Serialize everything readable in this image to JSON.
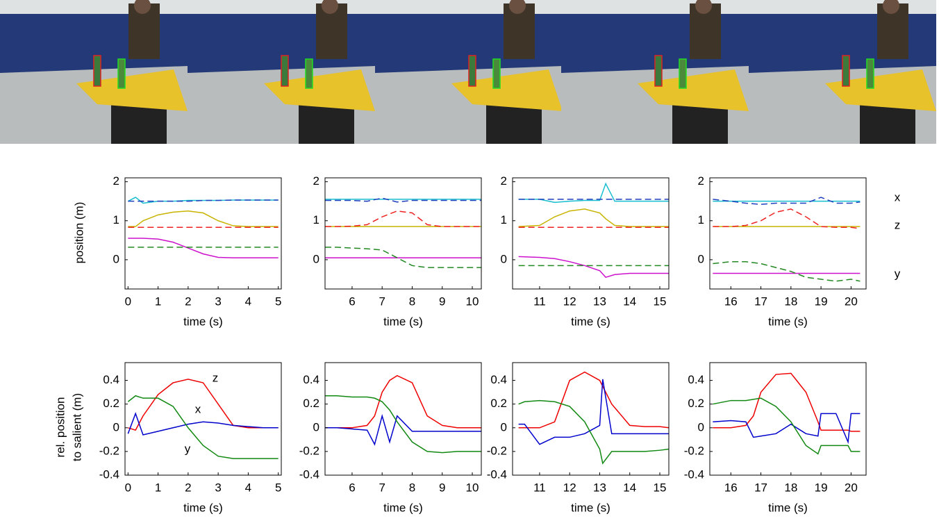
{
  "chart_data": [
    {
      "type": "line",
      "xlabel": "time (s)",
      "ylabel": [
        "position (m)"
      ],
      "x": [
        0,
        0.25,
        0.5,
        1,
        1.5,
        2,
        2.5,
        3,
        3.5,
        4,
        4.5,
        5
      ],
      "series": [
        {
          "color": "#17becf",
          "dashed": false,
          "values": [
            1.5,
            1.6,
            1.45,
            1.5,
            1.5,
            1.52,
            1.52,
            1.52,
            1.53,
            1.53,
            1.53,
            1.53
          ]
        },
        {
          "color": "#1f3fbf",
          "dashed": true,
          "values": [
            1.5,
            1.5,
            1.5,
            1.5,
            1.5,
            1.5,
            1.52,
            1.52,
            1.53,
            1.53,
            1.53,
            1.53
          ]
        },
        {
          "color": "#c8b400",
          "dashed": false,
          "values": [
            0.85,
            0.85,
            1.0,
            1.15,
            1.22,
            1.25,
            1.2,
            1.0,
            0.87,
            0.85,
            0.85,
            0.85
          ]
        },
        {
          "color": "#ee2222",
          "dashed": true,
          "values": [
            0.83,
            0.83,
            0.83,
            0.83,
            0.83,
            0.83,
            0.83,
            0.83,
            0.83,
            0.83,
            0.83,
            0.83
          ]
        },
        {
          "color": "#cc11cc",
          "dashed": false,
          "values": [
            0.55,
            0.55,
            0.55,
            0.53,
            0.45,
            0.3,
            0.15,
            0.06,
            0.05,
            0.05,
            0.05,
            0.05
          ]
        },
        {
          "color": "#228822",
          "dashed": true,
          "values": [
            0.32,
            0.32,
            0.32,
            0.32,
            0.32,
            0.32,
            0.32,
            0.32,
            0.32,
            0.32,
            0.32,
            0.32
          ]
        }
      ],
      "xlim": [
        -0.1,
        5.1
      ],
      "xticks": [
        0,
        1,
        2,
        3,
        4,
        5
      ],
      "ylim": [
        -0.75,
        2.1
      ],
      "yticks": [
        0,
        1,
        2
      ]
    },
    {
      "type": "line",
      "xlabel": "time (s)",
      "x": [
        5.1,
        5.5,
        6,
        6.5,
        7,
        7.5,
        8,
        8.5,
        9,
        9.5,
        10,
        10.3
      ],
      "series": [
        {
          "color": "#17becf",
          "dashed": false,
          "values": [
            1.55,
            1.55,
            1.55,
            1.55,
            1.55,
            1.55,
            1.55,
            1.55,
            1.55,
            1.55,
            1.55,
            1.55
          ]
        },
        {
          "color": "#1f3fbf",
          "dashed": true,
          "values": [
            1.52,
            1.52,
            1.52,
            1.5,
            1.58,
            1.48,
            1.52,
            1.52,
            1.52,
            1.52,
            1.52,
            1.52
          ]
        },
        {
          "color": "#c8b400",
          "dashed": false,
          "values": [
            0.85,
            0.85,
            0.85,
            0.85,
            0.85,
            0.85,
            0.85,
            0.85,
            0.85,
            0.85,
            0.85,
            0.85
          ]
        },
        {
          "color": "#ee2222",
          "dashed": true,
          "values": [
            0.85,
            0.85,
            0.86,
            0.9,
            1.1,
            1.25,
            1.2,
            0.9,
            0.85,
            0.85,
            0.85,
            0.85
          ]
        },
        {
          "color": "#cc11cc",
          "dashed": false,
          "values": [
            0.05,
            0.05,
            0.05,
            0.05,
            0.05,
            0.05,
            0.05,
            0.05,
            0.05,
            0.05,
            0.05,
            0.05
          ]
        },
        {
          "color": "#228822",
          "dashed": true,
          "values": [
            0.32,
            0.32,
            0.3,
            0.28,
            0.25,
            0.05,
            -0.15,
            -0.2,
            -0.2,
            -0.2,
            -0.2,
            -0.2
          ]
        }
      ],
      "xlim": [
        5.1,
        10.3
      ],
      "xticks": [
        6,
        7,
        8,
        9,
        10
      ],
      "ylim": [
        -0.75,
        2.1
      ],
      "yticks": [
        0,
        1,
        2
      ]
    },
    {
      "type": "line",
      "xlabel": "time (s)",
      "x": [
        10.3,
        11,
        11.5,
        12,
        12.5,
        13,
        13.2,
        13.5,
        14,
        14.5,
        15,
        15.3
      ],
      "series": [
        {
          "color": "#17becf",
          "dashed": false,
          "values": [
            1.55,
            1.55,
            1.47,
            1.5,
            1.52,
            1.52,
            1.95,
            1.5,
            1.5,
            1.5,
            1.5,
            1.5
          ]
        },
        {
          "color": "#1f3fbf",
          "dashed": true,
          "values": [
            1.55,
            1.55,
            1.55,
            1.55,
            1.55,
            1.55,
            1.55,
            1.55,
            1.55,
            1.55,
            1.55,
            1.55
          ]
        },
        {
          "color": "#c8b400",
          "dashed": false,
          "values": [
            0.85,
            0.88,
            1.1,
            1.25,
            1.3,
            1.2,
            1.05,
            0.88,
            0.85,
            0.85,
            0.85,
            0.85
          ]
        },
        {
          "color": "#ee2222",
          "dashed": true,
          "values": [
            0.83,
            0.83,
            0.83,
            0.83,
            0.83,
            0.83,
            0.83,
            0.83,
            0.83,
            0.83,
            0.83,
            0.83
          ]
        },
        {
          "color": "#cc11cc",
          "dashed": false,
          "values": [
            0.08,
            0.06,
            0.03,
            -0.05,
            -0.15,
            -0.28,
            -0.45,
            -0.38,
            -0.35,
            -0.35,
            -0.35,
            -0.35
          ]
        },
        {
          "color": "#228822",
          "dashed": true,
          "values": [
            -0.15,
            -0.15,
            -0.15,
            -0.15,
            -0.15,
            -0.15,
            -0.15,
            -0.15,
            -0.15,
            -0.15,
            -0.15,
            -0.15
          ]
        }
      ],
      "xlim": [
        10.1,
        15.3
      ],
      "xticks": [
        11,
        12,
        13,
        14,
        15
      ],
      "ylim": [
        -0.75,
        2.1
      ],
      "yticks": [
        0,
        1,
        2
      ]
    },
    {
      "type": "line",
      "xlabel": "time (s)",
      "annotations": [
        "x",
        "z",
        "y"
      ],
      "x": [
        15.4,
        16,
        16.5,
        17,
        17.5,
        18,
        18.5,
        19,
        19.5,
        20,
        20.3
      ],
      "series": [
        {
          "color": "#17becf",
          "dashed": false,
          "values": [
            1.5,
            1.5,
            1.5,
            1.5,
            1.5,
            1.5,
            1.5,
            1.5,
            1.5,
            1.5,
            1.5
          ]
        },
        {
          "color": "#1f3fbf",
          "dashed": true,
          "values": [
            1.55,
            1.5,
            1.45,
            1.42,
            1.45,
            1.45,
            1.45,
            1.6,
            1.45,
            1.45,
            1.48
          ]
        },
        {
          "color": "#c8b400",
          "dashed": false,
          "values": [
            0.85,
            0.85,
            0.85,
            0.85,
            0.85,
            0.85,
            0.85,
            0.85,
            0.85,
            0.85,
            0.85
          ]
        },
        {
          "color": "#ee2222",
          "dashed": true,
          "values": [
            0.85,
            0.85,
            0.88,
            1.0,
            1.22,
            1.3,
            1.1,
            0.85,
            0.83,
            0.83,
            0.8
          ]
        },
        {
          "color": "#cc11cc",
          "dashed": false,
          "values": [
            -0.35,
            -0.35,
            -0.35,
            -0.35,
            -0.35,
            -0.35,
            -0.35,
            -0.35,
            -0.35,
            -0.35,
            -0.35
          ]
        },
        {
          "color": "#228822",
          "dashed": true,
          "values": [
            -0.1,
            -0.05,
            -0.05,
            -0.1,
            -0.2,
            -0.3,
            -0.45,
            -0.5,
            -0.55,
            -0.5,
            -0.55
          ]
        }
      ],
      "xlim": [
        15.3,
        20.5
      ],
      "xticks": [
        16,
        17,
        18,
        19,
        20
      ],
      "ylim": [
        -0.75,
        2.1
      ],
      "yticks": [
        0,
        1,
        2
      ]
    },
    {
      "type": "line",
      "xlabel": "time (s)",
      "ylabel": [
        "rel. position",
        "to salient (m)"
      ],
      "annotations": [
        "z",
        "x",
        "y"
      ],
      "x": [
        0,
        0.25,
        0.5,
        1,
        1.5,
        2,
        2.5,
        3,
        3.5,
        4,
        4.5,
        5
      ],
      "series": [
        {
          "color": "#ee0000",
          "dashed": false,
          "values": [
            0.0,
            -0.02,
            0.1,
            0.28,
            0.38,
            0.41,
            0.38,
            0.2,
            0.02,
            0,
            0,
            0
          ]
        },
        {
          "color": "#0000cc",
          "dashed": false,
          "values": [
            -0.05,
            0.12,
            -0.06,
            -0.03,
            0,
            0.03,
            0.05,
            0.04,
            0.02,
            0.01,
            0,
            0
          ]
        },
        {
          "color": "#118811",
          "dashed": false,
          "values": [
            0.22,
            0.27,
            0.25,
            0.25,
            0.18,
            0,
            -0.15,
            -0.24,
            -0.26,
            -0.26,
            -0.26,
            -0.26
          ]
        }
      ],
      "xlim": [
        -0.1,
        5.1
      ],
      "xticks": [
        0,
        1,
        2,
        3,
        4,
        5
      ],
      "ylim": [
        -0.4,
        0.55
      ],
      "yticks": [
        -0.4,
        -0.2,
        0,
        0.2,
        0.4
      ]
    },
    {
      "type": "line",
      "xlabel": "time (s)",
      "x": [
        5.1,
        5.5,
        6,
        6.5,
        6.75,
        7,
        7.25,
        7.5,
        8,
        8.5,
        9,
        9.5,
        10,
        10.3
      ],
      "series": [
        {
          "color": "#ee0000",
          "dashed": false,
          "values": [
            0,
            0,
            0,
            0.02,
            0.1,
            0.3,
            0.4,
            0.44,
            0.38,
            0.1,
            0.02,
            0,
            0,
            0
          ]
        },
        {
          "color": "#0000cc",
          "dashed": false,
          "values": [
            0,
            0,
            -0.01,
            -0.02,
            -0.14,
            0.1,
            -0.12,
            0.1,
            -0.03,
            -0.03,
            -0.03,
            -0.03,
            -0.03,
            -0.03
          ]
        },
        {
          "color": "#118811",
          "dashed": false,
          "values": [
            0.27,
            0.27,
            0.26,
            0.26,
            0.25,
            0.22,
            0.15,
            0.05,
            -0.12,
            -0.2,
            -0.21,
            -0.2,
            -0.2,
            -0.2
          ]
        }
      ],
      "xlim": [
        5.1,
        10.3
      ],
      "xticks": [
        6,
        7,
        8,
        9,
        10
      ],
      "ylim": [
        -0.4,
        0.55
      ],
      "yticks": [
        -0.4,
        -0.2,
        0,
        0.2,
        0.4
      ]
    },
    {
      "type": "line",
      "xlabel": "time (s)",
      "x": [
        10.3,
        10.5,
        11,
        11.5,
        12,
        12.5,
        13,
        13.1,
        13.4,
        14,
        14.5,
        15,
        15.3
      ],
      "series": [
        {
          "color": "#ee0000",
          "dashed": false,
          "values": [
            0,
            0,
            0,
            0.05,
            0.4,
            0.47,
            0.4,
            0.35,
            0.2,
            0.02,
            0.01,
            0.01,
            0
          ]
        },
        {
          "color": "#0000cc",
          "dashed": false,
          "values": [
            0.03,
            0.03,
            -0.14,
            -0.08,
            -0.08,
            -0.05,
            0.02,
            0.41,
            -0.05,
            -0.05,
            -0.05,
            -0.05,
            -0.05
          ]
        },
        {
          "color": "#118811",
          "dashed": false,
          "values": [
            0.2,
            0.22,
            0.23,
            0.22,
            0.18,
            0.05,
            -0.18,
            -0.3,
            -0.2,
            -0.2,
            -0.2,
            -0.19,
            -0.18
          ]
        }
      ],
      "xlim": [
        10.1,
        15.3
      ],
      "xticks": [
        11,
        12,
        13,
        14,
        15
      ],
      "ylim": [
        -0.4,
        0.55
      ],
      "yticks": [
        -0.4,
        -0.2,
        0,
        0.2,
        0.4
      ]
    },
    {
      "type": "line",
      "xlabel": "time (s)",
      "x": [
        15.4,
        16,
        16.5,
        16.75,
        17,
        17.5,
        18,
        18.5,
        18.9,
        19,
        19.5,
        19.9,
        20,
        20.3
      ],
      "series": [
        {
          "color": "#ee0000",
          "dashed": false,
          "values": [
            0,
            0,
            0.02,
            0.1,
            0.3,
            0.45,
            0.46,
            0.3,
            0.05,
            -0.02,
            -0.02,
            -0.02,
            -0.03,
            -0.03
          ]
        },
        {
          "color": "#0000cc",
          "dashed": false,
          "values": [
            0.05,
            0.06,
            0.05,
            -0.08,
            -0.07,
            -0.05,
            0.03,
            -0.05,
            -0.07,
            0.12,
            0.12,
            -0.12,
            0.12,
            0.12
          ]
        },
        {
          "color": "#118811",
          "dashed": false,
          "values": [
            0.2,
            0.23,
            0.23,
            0.24,
            0.25,
            0.18,
            0.05,
            -0.15,
            -0.22,
            -0.15,
            -0.15,
            -0.15,
            -0.2,
            -0.2
          ]
        }
      ],
      "xlim": [
        15.3,
        20.5
      ],
      "xticks": [
        16,
        17,
        18,
        19,
        20
      ],
      "ylim": [
        -0.4,
        0.55
      ],
      "yticks": [
        -0.4,
        -0.2,
        0,
        0.2,
        0.4
      ]
    }
  ]
}
